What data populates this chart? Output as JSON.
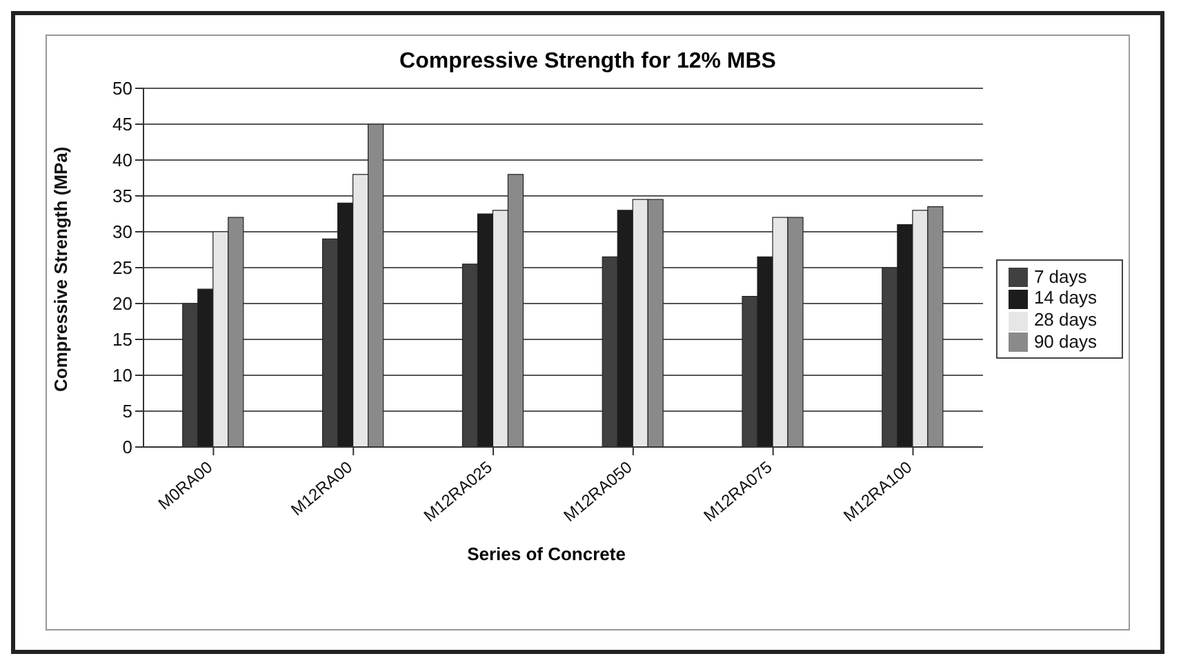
{
  "chart_data": {
    "type": "bar",
    "title": "Compressive Strength for 12% MBS",
    "xlabel": "Series of Concrete",
    "ylabel": "Compressive Strength (MPa)",
    "categories": [
      "M0RA00",
      "M12RA00",
      "M12RA025",
      "M12RA050",
      "M12RA075",
      "M12RA100"
    ],
    "series": [
      {
        "name": "7 days",
        "color": "#404040",
        "values": [
          20,
          29,
          25.5,
          26.5,
          21,
          25
        ]
      },
      {
        "name": "14 days",
        "color": "#1c1c1c",
        "values": [
          22,
          34,
          32.5,
          33,
          26.5,
          31
        ]
      },
      {
        "name": "28 days",
        "color": "#e6e6e6",
        "values": [
          30,
          38,
          33,
          34.5,
          32,
          33
        ]
      },
      {
        "name": "90 days",
        "color": "#8a8a8a",
        "values": [
          32,
          45,
          38,
          34.5,
          32,
          33.5
        ]
      }
    ],
    "ylim": [
      0,
      50
    ],
    "yticks": [
      0,
      5,
      10,
      15,
      20,
      25,
      30,
      35,
      40,
      45,
      50
    ],
    "grid": "y",
    "legend": "right"
  }
}
